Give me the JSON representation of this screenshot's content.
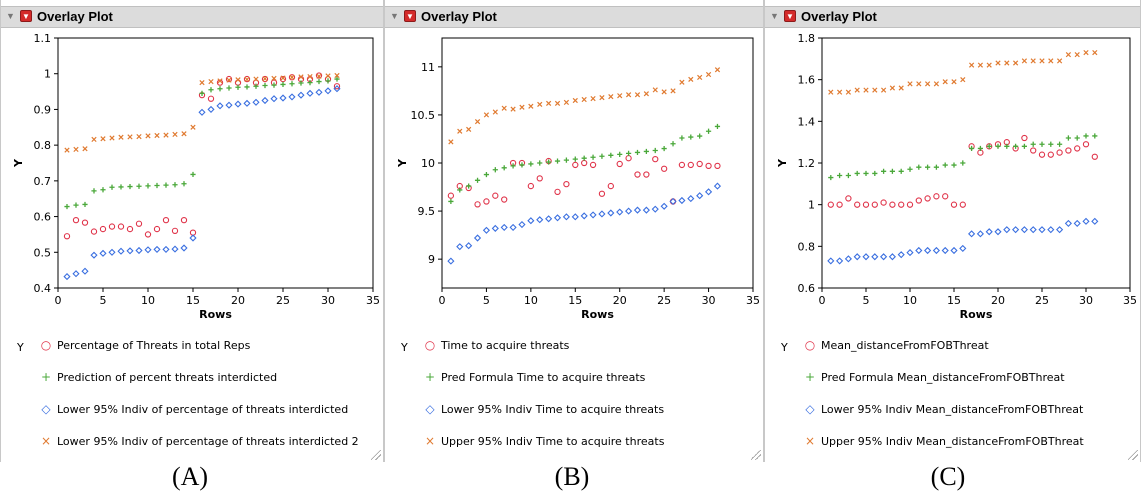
{
  "panels": [
    {
      "title": "Overlay Plot",
      "caption": "(A)",
      "legend_title": "Y",
      "xlabel": "Rows",
      "ylabel": "Y",
      "chart_data": {
        "type": "scatter",
        "title": "Overlay Plot",
        "xlabel": "Rows",
        "ylabel": "Y",
        "xlim": [
          0,
          35
        ],
        "ylim": [
          0.4,
          1.1
        ],
        "xticks": [
          0,
          5,
          10,
          15,
          20,
          25,
          30,
          35
        ],
        "yticks": [
          0.4,
          0.5,
          0.6,
          0.7,
          0.8,
          0.9,
          1,
          1.1
        ],
        "ytick_labels": [
          "0.4",
          "0.5",
          "0.6",
          "0.7",
          "0.8",
          "0.9",
          "1",
          "1.1"
        ],
        "xtick_labels": [
          "0",
          "5",
          "10",
          "15",
          "20",
          "25",
          "30",
          "35"
        ],
        "grid": false,
        "legend_position": "bottom",
        "x": [
          1,
          2,
          3,
          4,
          5,
          6,
          7,
          8,
          9,
          10,
          11,
          12,
          13,
          14,
          15,
          16,
          17,
          18,
          19,
          20,
          21,
          22,
          23,
          24,
          25,
          26,
          27,
          28,
          29,
          30,
          31
        ],
        "series": [
          {
            "name": "Percentage of Threats in total Reps",
            "marker": "circle",
            "color": "#e0344a",
            "values": [
              0.545,
              0.59,
              0.583,
              0.558,
              0.565,
              0.572,
              0.572,
              0.565,
              0.58,
              0.55,
              0.565,
              0.59,
              0.56,
              0.59,
              0.555,
              0.94,
              0.93,
              0.975,
              0.985,
              0.975,
              0.985,
              0.975,
              0.985,
              0.975,
              0.985,
              0.99,
              0.985,
              0.985,
              0.995,
              0.985,
              0.965
            ]
          },
          {
            "name": "Prediction of percent threats interdicted",
            "marker": "plus",
            "color": "#4aa83a",
            "values": [
              0.628,
              0.632,
              0.634,
              0.672,
              0.675,
              0.682,
              0.683,
              0.684,
              0.685,
              0.686,
              0.687,
              0.688,
              0.689,
              0.692,
              0.718,
              0.945,
              0.955,
              0.958,
              0.96,
              0.962,
              0.963,
              0.965,
              0.967,
              0.968,
              0.97,
              0.972,
              0.974,
              0.975,
              0.978,
              0.98,
              0.985
            ]
          },
          {
            "name": "Lower 95% Indiv of percentage of threats interdicted",
            "marker": "diamond",
            "color": "#3a6fe0",
            "values": [
              0.432,
              0.44,
              0.447,
              0.492,
              0.497,
              0.5,
              0.503,
              0.504,
              0.505,
              0.507,
              0.508,
              0.508,
              0.509,
              0.512,
              0.54,
              0.892,
              0.9,
              0.91,
              0.912,
              0.915,
              0.917,
              0.92,
              0.925,
              0.93,
              0.932,
              0.935,
              0.94,
              0.945,
              0.948,
              0.952,
              0.958
            ]
          },
          {
            "name": "Lower 95% Indiv of percentage of threats interdicted 2",
            "marker": "x",
            "color": "#e07a30",
            "values": [
              0.786,
              0.788,
              0.79,
              0.816,
              0.818,
              0.82,
              0.822,
              0.823,
              0.824,
              0.826,
              0.827,
              0.828,
              0.83,
              0.832,
              0.85,
              0.975,
              0.978,
              0.98,
              0.982,
              0.983,
              0.984,
              0.985,
              0.986,
              0.987,
              0.988,
              0.99,
              0.991,
              0.992,
              0.993,
              0.994,
              0.995
            ]
          }
        ]
      }
    },
    {
      "title": "Overlay Plot",
      "caption": "(B)",
      "legend_title": "Y",
      "xlabel": "Rows",
      "ylabel": "Y",
      "chart_data": {
        "type": "scatter",
        "title": "Overlay Plot",
        "xlabel": "Rows",
        "ylabel": "Y",
        "xlim": [
          0,
          35
        ],
        "ylim": [
          8.7,
          11.3
        ],
        "xticks": [
          0,
          5,
          10,
          15,
          20,
          25,
          30,
          35
        ],
        "yticks": [
          9,
          9.5,
          10,
          10.5,
          11
        ],
        "ytick_labels": [
          "9",
          "9.5",
          "10",
          "10.5",
          "11"
        ],
        "xtick_labels": [
          "0",
          "5",
          "10",
          "15",
          "20",
          "25",
          "30",
          "35"
        ],
        "grid": false,
        "legend_position": "bottom",
        "x": [
          1,
          2,
          3,
          4,
          5,
          6,
          7,
          8,
          9,
          10,
          11,
          12,
          13,
          14,
          15,
          16,
          17,
          18,
          19,
          20,
          21,
          22,
          23,
          24,
          25,
          26,
          27,
          28,
          29,
          30,
          31
        ],
        "series": [
          {
            "name": "Time to acquire threats",
            "marker": "circle",
            "color": "#e0344a",
            "values": [
              9.66,
              9.76,
              9.74,
              9.57,
              9.6,
              9.66,
              9.62,
              10.0,
              10.0,
              9.76,
              9.84,
              10.02,
              9.7,
              9.78,
              9.98,
              10.0,
              9.98,
              9.68,
              9.76,
              9.99,
              10.05,
              9.88,
              9.88,
              10.04,
              9.94,
              9.6,
              9.98,
              9.98,
              9.99,
              9.97,
              9.97
            ]
          },
          {
            "name": "Pred Formula Time to acquire threats",
            "marker": "plus",
            "color": "#4aa83a",
            "values": [
              9.6,
              9.72,
              9.76,
              9.82,
              9.88,
              9.93,
              9.95,
              9.97,
              9.98,
              9.99,
              10.0,
              10.01,
              10.02,
              10.03,
              10.04,
              10.05,
              10.06,
              10.07,
              10.08,
              10.09,
              10.1,
              10.11,
              10.12,
              10.13,
              10.15,
              10.2,
              10.26,
              10.27,
              10.28,
              10.33,
              10.38
            ]
          },
          {
            "name": "Lower 95% Indiv Time to acquire threats",
            "marker": "diamond",
            "color": "#3a6fe0",
            "values": [
              8.98,
              9.13,
              9.14,
              9.22,
              9.3,
              9.32,
              9.33,
              9.33,
              9.36,
              9.4,
              9.41,
              9.42,
              9.43,
              9.44,
              9.44,
              9.45,
              9.46,
              9.47,
              9.48,
              9.49,
              9.5,
              9.51,
              9.51,
              9.52,
              9.55,
              9.6,
              9.61,
              9.63,
              9.66,
              9.7,
              9.76
            ]
          },
          {
            "name": "Upper 95% Indiv Time to acquire threats",
            "marker": "x",
            "color": "#e07a30",
            "values": [
              10.22,
              10.33,
              10.35,
              10.43,
              10.5,
              10.53,
              10.57,
              10.56,
              10.58,
              10.59,
              10.61,
              10.62,
              10.62,
              10.63,
              10.65,
              10.66,
              10.67,
              10.68,
              10.69,
              10.7,
              10.71,
              10.71,
              10.72,
              10.76,
              10.74,
              10.75,
              10.84,
              10.87,
              10.89,
              10.92,
              10.97
            ]
          }
        ]
      }
    },
    {
      "title": "Overlay Plot",
      "caption": "(C)",
      "legend_title": "Y",
      "xlabel": "Rows",
      "ylabel": "Y",
      "chart_data": {
        "type": "scatter",
        "title": "Overlay Plot",
        "xlabel": "Rows",
        "ylabel": "Y",
        "xlim": [
          0,
          35
        ],
        "ylim": [
          0.6,
          1.8
        ],
        "xticks": [
          0,
          5,
          10,
          15,
          20,
          25,
          30,
          35
        ],
        "yticks": [
          0.6,
          0.8,
          1,
          1.2,
          1.4,
          1.6,
          1.8
        ],
        "ytick_labels": [
          "0.6",
          "0.8",
          "1",
          "1.2",
          "1.4",
          "1.6",
          "1.8"
        ],
        "xtick_labels": [
          "0",
          "5",
          "10",
          "15",
          "20",
          "25",
          "30",
          "35"
        ],
        "grid": false,
        "legend_position": "bottom",
        "x": [
          1,
          2,
          3,
          4,
          5,
          6,
          7,
          8,
          9,
          10,
          11,
          12,
          13,
          14,
          15,
          16,
          17,
          18,
          19,
          20,
          21,
          22,
          23,
          24,
          25,
          26,
          27,
          28,
          29,
          30,
          31
        ],
        "series": [
          {
            "name": "Mean_distanceFromFOBThreat",
            "marker": "circle",
            "color": "#e0344a",
            "values": [
              1.0,
              1.0,
              1.03,
              1.0,
              1.0,
              1.0,
              1.01,
              1.0,
              1.0,
              1.0,
              1.02,
              1.03,
              1.04,
              1.04,
              1.0,
              1.0,
              1.28,
              1.25,
              1.28,
              1.29,
              1.3,
              1.27,
              1.32,
              1.26,
              1.24,
              1.24,
              1.25,
              1.26,
              1.27,
              1.29,
              1.23
            ]
          },
          {
            "name": "Pred Formula Mean_distanceFromFOBThreat",
            "marker": "plus",
            "color": "#4aa83a",
            "values": [
              1.13,
              1.14,
              1.14,
              1.15,
              1.15,
              1.15,
              1.16,
              1.16,
              1.16,
              1.17,
              1.18,
              1.18,
              1.18,
              1.19,
              1.19,
              1.2,
              1.27,
              1.27,
              1.28,
              1.28,
              1.28,
              1.28,
              1.28,
              1.29,
              1.29,
              1.29,
              1.29,
              1.32,
              1.32,
              1.33,
              1.33
            ]
          },
          {
            "name": "Lower 95% Indiv Mean_distanceFromFOBThreat",
            "marker": "diamond",
            "color": "#3a6fe0",
            "values": [
              0.73,
              0.73,
              0.74,
              0.75,
              0.75,
              0.75,
              0.75,
              0.75,
              0.76,
              0.77,
              0.78,
              0.78,
              0.78,
              0.78,
              0.78,
              0.79,
              0.86,
              0.86,
              0.87,
              0.87,
              0.88,
              0.88,
              0.88,
              0.88,
              0.88,
              0.88,
              0.88,
              0.91,
              0.91,
              0.92,
              0.92
            ]
          },
          {
            "name": "Upper 95% Indiv Mean_distanceFromFOBThreat",
            "marker": "x",
            "color": "#e07a30",
            "values": [
              1.54,
              1.54,
              1.54,
              1.55,
              1.55,
              1.55,
              1.55,
              1.56,
              1.56,
              1.58,
              1.58,
              1.58,
              1.58,
              1.59,
              1.59,
              1.6,
              1.67,
              1.67,
              1.67,
              1.68,
              1.68,
              1.68,
              1.69,
              1.69,
              1.69,
              1.69,
              1.69,
              1.72,
              1.72,
              1.73,
              1.73
            ]
          }
        ]
      }
    }
  ]
}
